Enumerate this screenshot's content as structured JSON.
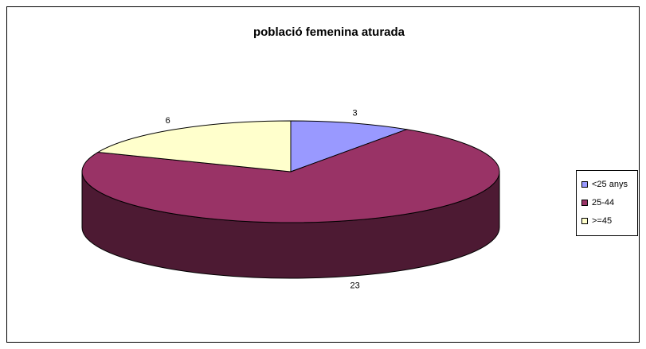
{
  "chart_data": {
    "type": "pie",
    "title": "població femenina aturada",
    "categories": [
      "<25 anys",
      "25-44",
      ">=45"
    ],
    "values": [
      3,
      23,
      6
    ],
    "colors": [
      "#9999ff",
      "#993366",
      "#ffffcc"
    ],
    "legend": "right"
  }
}
